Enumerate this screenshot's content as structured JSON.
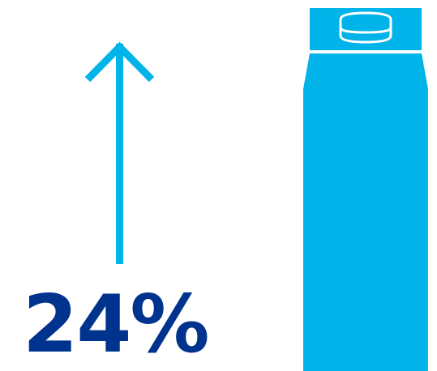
{
  "stat": {
    "value": "24%",
    "direction": "up",
    "direction_icon": "arrow-up-icon",
    "color": "#00338d"
  },
  "illustration": {
    "icon": "milk-carton-icon",
    "color": "#00b3e8"
  },
  "accent_color": "#00b3e8"
}
